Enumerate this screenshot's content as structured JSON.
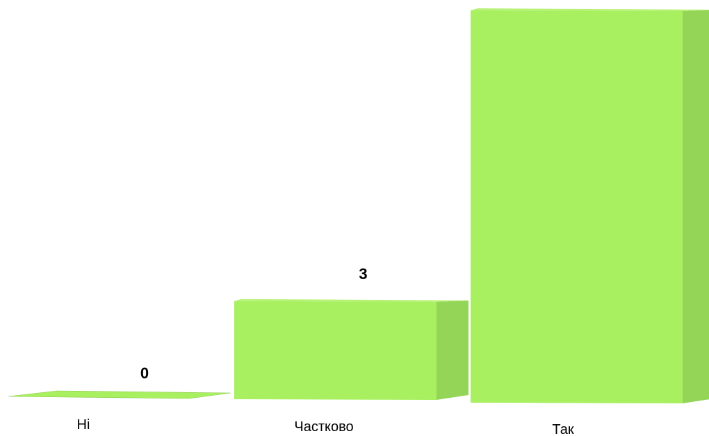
{
  "chart_data": {
    "type": "bar",
    "categories": [
      "Ні",
      "Частково",
      "Так"
    ],
    "values": [
      0,
      3,
      12
    ],
    "value_labels": [
      "0",
      "3",
      ""
    ],
    "title": "",
    "xlabel": "",
    "ylabel": "",
    "ylim": [
      0,
      12
    ],
    "grid": false,
    "legend": "none",
    "colors": {
      "bar_front": "#a8f060",
      "bar_side": "#94d456",
      "bar_top": "#b6f276",
      "bar_edge": "#8bc84c"
    }
  }
}
